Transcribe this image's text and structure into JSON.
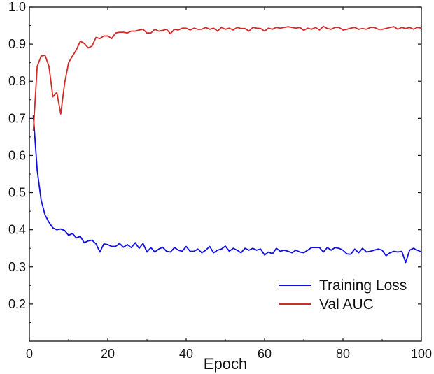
{
  "chart_data": {
    "type": "line",
    "title": "",
    "xlabel": "Epoch",
    "ylabel": "",
    "xlim": [
      0,
      100
    ],
    "ylim": [
      0.1,
      1.0
    ],
    "xticks": [
      0,
      20,
      40,
      60,
      80,
      100
    ],
    "yticks": [
      0.2,
      0.3,
      0.4,
      0.5,
      0.6,
      0.7,
      0.8,
      0.9,
      1.0
    ],
    "xtick_labels": [
      "0",
      "20",
      "40",
      "60",
      "80",
      "100"
    ],
    "ytick_labels": [
      "0.2",
      "0.3",
      "0.4",
      "0.5",
      "0.6",
      "0.7",
      "0.8",
      "0.9",
      "1.0"
    ],
    "grid": false,
    "legend_position": "bottom-right",
    "x": [
      1,
      2,
      3,
      4,
      5,
      6,
      7,
      8,
      9,
      10,
      11,
      12,
      13,
      14,
      15,
      16,
      17,
      18,
      19,
      20,
      21,
      22,
      23,
      24,
      25,
      26,
      27,
      28,
      29,
      30,
      31,
      32,
      33,
      34,
      35,
      36,
      37,
      38,
      39,
      40,
      41,
      42,
      43,
      44,
      45,
      46,
      47,
      48,
      49,
      50,
      51,
      52,
      53,
      54,
      55,
      56,
      57,
      58,
      59,
      60,
      61,
      62,
      63,
      64,
      65,
      66,
      67,
      68,
      69,
      70,
      71,
      72,
      73,
      74,
      75,
      76,
      77,
      78,
      79,
      80,
      81,
      82,
      83,
      84,
      85,
      86,
      87,
      88,
      89,
      90,
      91,
      92,
      93,
      94,
      95,
      96,
      97,
      98,
      99,
      100
    ],
    "series": [
      {
        "name": "Training Loss",
        "color": "#1010e0",
        "values": [
          0.71,
          0.56,
          0.48,
          0.44,
          0.42,
          0.405,
          0.4,
          0.402,
          0.398,
          0.385,
          0.39,
          0.378,
          0.382,
          0.365,
          0.37,
          0.372,
          0.362,
          0.34,
          0.362,
          0.36,
          0.355,
          0.355,
          0.363,
          0.353,
          0.36,
          0.352,
          0.365,
          0.35,
          0.363,
          0.34,
          0.352,
          0.34,
          0.348,
          0.353,
          0.342,
          0.34,
          0.352,
          0.345,
          0.342,
          0.355,
          0.342,
          0.342,
          0.348,
          0.338,
          0.345,
          0.355,
          0.338,
          0.345,
          0.348,
          0.356,
          0.342,
          0.35,
          0.345,
          0.338,
          0.35,
          0.345,
          0.35,
          0.345,
          0.348,
          0.332,
          0.34,
          0.335,
          0.35,
          0.342,
          0.345,
          0.342,
          0.338,
          0.345,
          0.34,
          0.338,
          0.345,
          0.352,
          0.352,
          0.352,
          0.34,
          0.352,
          0.345,
          0.352,
          0.35,
          0.345,
          0.335,
          0.334,
          0.348,
          0.338,
          0.35,
          0.34,
          0.342,
          0.345,
          0.348,
          0.345,
          0.33,
          0.338,
          0.342,
          0.34,
          0.342,
          0.312,
          0.345,
          0.35,
          0.345,
          0.34
        ]
      },
      {
        "name": "Val AUC",
        "color": "#d42a2a",
        "values": [
          0.665,
          0.84,
          0.868,
          0.87,
          0.84,
          0.758,
          0.77,
          0.712,
          0.795,
          0.85,
          0.868,
          0.885,
          0.908,
          0.902,
          0.89,
          0.895,
          0.918,
          0.915,
          0.922,
          0.922,
          0.915,
          0.93,
          0.932,
          0.932,
          0.93,
          0.935,
          0.935,
          0.938,
          0.94,
          0.93,
          0.93,
          0.94,
          0.935,
          0.937,
          0.94,
          0.928,
          0.94,
          0.938,
          0.943,
          0.943,
          0.938,
          0.943,
          0.94,
          0.94,
          0.945,
          0.94,
          0.943,
          0.935,
          0.945,
          0.94,
          0.943,
          0.938,
          0.945,
          0.942,
          0.942,
          0.935,
          0.945,
          0.943,
          0.942,
          0.935,
          0.943,
          0.94,
          0.945,
          0.943,
          0.945,
          0.947,
          0.945,
          0.943,
          0.945,
          0.937,
          0.943,
          0.94,
          0.945,
          0.938,
          0.948,
          0.942,
          0.94,
          0.945,
          0.945,
          0.938,
          0.94,
          0.943,
          0.945,
          0.94,
          0.942,
          0.94,
          0.945,
          0.945,
          0.94,
          0.94,
          0.942,
          0.945,
          0.947,
          0.94,
          0.945,
          0.942,
          0.945,
          0.94,
          0.945,
          0.943
        ]
      }
    ]
  }
}
